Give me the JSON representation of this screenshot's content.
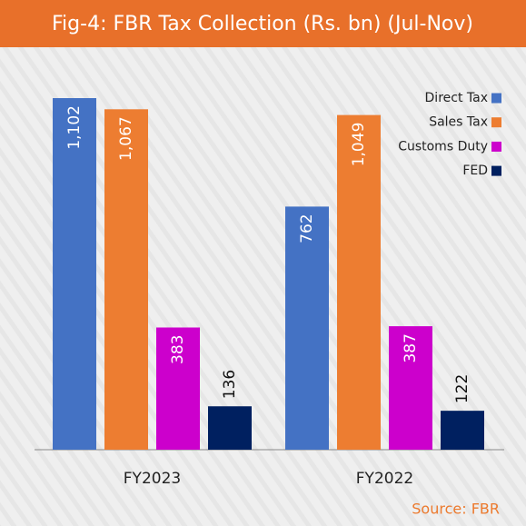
{
  "chart_data": {
    "type": "bar",
    "title": "Fig-4: FBR Tax Collection (Rs. bn) (Jul-Nov)",
    "categories": [
      "FY2023",
      "FY2022"
    ],
    "series": [
      {
        "name": "Direct Tax",
        "color": "#4472c4",
        "values": [
          1102,
          762
        ],
        "value_labels": [
          "1,102",
          "762"
        ]
      },
      {
        "name": "Sales Tax",
        "color": "#ed7d31",
        "values": [
          1067,
          1049
        ],
        "value_labels": [
          "1,067",
          "1,049"
        ]
      },
      {
        "name": "Customs Duty",
        "color": "#cc00cc",
        "values": [
          383,
          387
        ],
        "value_labels": [
          "383",
          "387"
        ]
      },
      {
        "name": "FED",
        "color": "#002060",
        "values": [
          136,
          122
        ],
        "value_labels": [
          "136",
          "122"
        ]
      }
    ],
    "legend": "top-right",
    "source": "Source: FBR"
  }
}
